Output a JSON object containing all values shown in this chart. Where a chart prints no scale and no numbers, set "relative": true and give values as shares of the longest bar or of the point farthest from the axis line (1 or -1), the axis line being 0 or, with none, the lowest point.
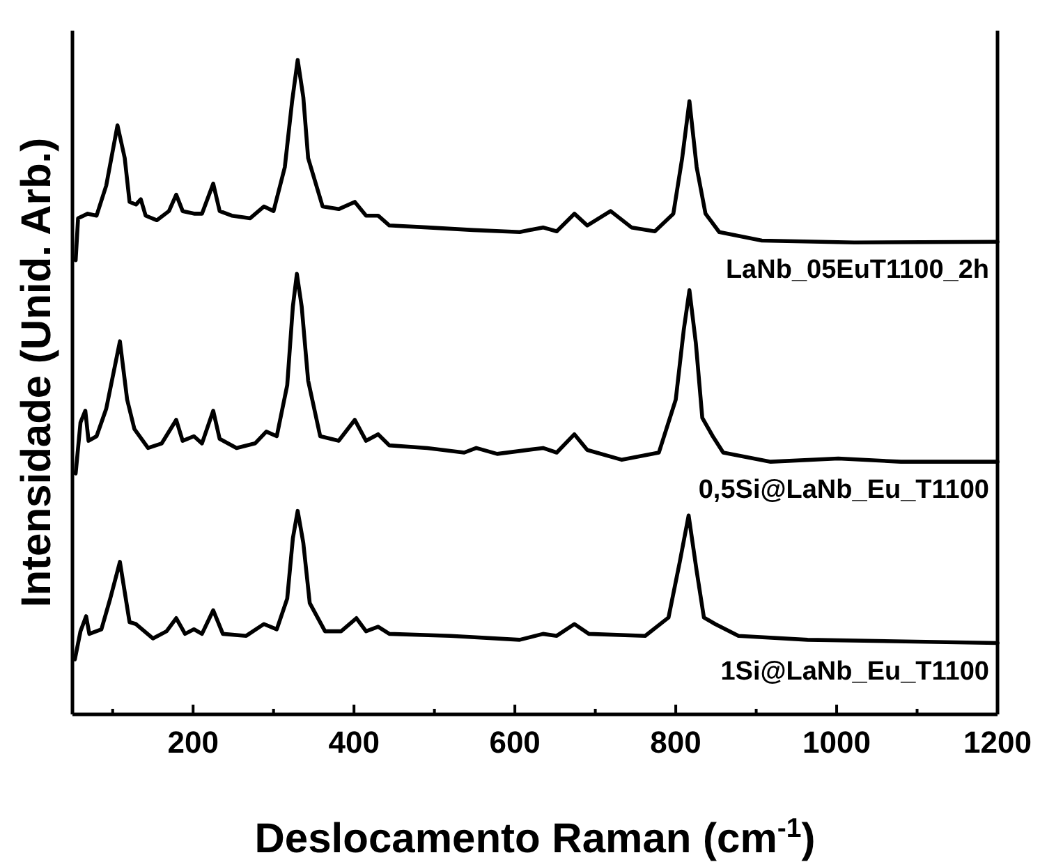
{
  "chart_data": {
    "type": "line",
    "relative": true,
    "xlabel": "Deslocamento Raman (cm$^{-1}$)",
    "ylabel": "Intensidade (Unid. Arb.)",
    "xlim": [
      50,
      1200
    ],
    "xticks": [
      {
        "value": 100,
        "label": null
      },
      200,
      {
        "value": 300,
        "label": null
      },
      400,
      {
        "value": 500,
        "label": null
      },
      600,
      {
        "value": 700,
        "label": null
      },
      800,
      {
        "value": 900,
        "label": null
      },
      1000,
      {
        "value": 1100,
        "label": null
      },
      1200
    ],
    "grid": false,
    "tick_labels": "x",
    "line_style": "solid",
    "series": [
      {
        "name": "LaNb_05EuT1100_2h",
        "color": "#000000",
        "x": [
          54,
          57,
          69,
          80,
          92,
          106,
          115,
          121,
          129,
          135,
          141,
          155,
          170,
          179,
          187,
          202,
          211,
          225,
          233,
          248,
          271,
          288,
          300,
          314,
          323,
          330,
          337,
          343,
          361,
          381,
          401,
          415,
          430,
          444,
          491,
          548,
          606,
          635,
          652,
          674,
          690,
          719,
          745,
          774,
          797,
          808,
          817,
          826,
          837,
          854,
          907,
          1022,
          1200
        ],
        "values": [
          0.694,
          0.758,
          0.765,
          0.762,
          0.808,
          0.9,
          0.85,
          0.783,
          0.779,
          0.787,
          0.762,
          0.755,
          0.769,
          0.794,
          0.769,
          0.765,
          0.765,
          0.811,
          0.769,
          0.762,
          0.758,
          0.776,
          0.769,
          0.836,
          0.936,
          1,
          0.943,
          0.85,
          0.776,
          0.772,
          0.783,
          0.762,
          0.762,
          0.747,
          0.744,
          0.74,
          0.737,
          0.744,
          0.738,
          0.765,
          0.747,
          0.769,
          0.744,
          0.738,
          0.765,
          0.85,
          0.937,
          0.836,
          0.765,
          0.737,
          0.724,
          0.721,
          0.722
        ]
      },
      {
        "name": "0,5Si@LaNb_Eu_T1100",
        "color": "#000000",
        "x": [
          54,
          60,
          66,
          70,
          80,
          92,
          109,
          118,
          127,
          144,
          161,
          179,
          187,
          201,
          211,
          225,
          233,
          254,
          277,
          291,
          304,
          317,
          324,
          329,
          335,
          343,
          358,
          381,
          401,
          415,
          430,
          444,
          491,
          537,
          552,
          578,
          635,
          652,
          674,
          690,
          733,
          779,
          800,
          810,
          817,
          825,
          833,
          846,
          859,
          918,
          1002,
          1080,
          1200
        ],
        "values": [
          0.368,
          0.446,
          0.464,
          0.418,
          0.425,
          0.467,
          0.57,
          0.481,
          0.436,
          0.407,
          0.414,
          0.45,
          0.418,
          0.425,
          0.414,
          0.464,
          0.421,
          0.407,
          0.414,
          0.432,
          0.425,
          0.503,
          0.623,
          0.673,
          0.623,
          0.51,
          0.425,
          0.418,
          0.45,
          0.418,
          0.428,
          0.411,
          0.407,
          0.4,
          0.407,
          0.398,
          0.407,
          0.4,
          0.428,
          0.404,
          0.389,
          0.4,
          0.481,
          0.588,
          0.648,
          0.567,
          0.453,
          0.425,
          0.4,
          0.386,
          0.391,
          0.386,
          0.386
        ]
      },
      {
        "name": "1Si@LaNb_Eu_T1100",
        "color": "#000000",
        "x": [
          53,
          60,
          67,
          71,
          86,
          97,
          109,
          121,
          129,
          150,
          167,
          179,
          190,
          201,
          211,
          225,
          237,
          266,
          288,
          304,
          317,
          324,
          330,
          337,
          345,
          364,
          384,
          403,
          415,
          430,
          444,
          520,
          606,
          635,
          652,
          674,
          692,
          762,
          791,
          805,
          816,
          826,
          835,
          849,
          878,
          964,
          1200
        ],
        "values": [
          0.084,
          0.127,
          0.15,
          0.123,
          0.13,
          0.177,
          0.233,
          0.141,
          0.138,
          0.116,
          0.127,
          0.147,
          0.123,
          0.13,
          0.123,
          0.159,
          0.123,
          0.12,
          0.138,
          0.13,
          0.177,
          0.269,
          0.311,
          0.262,
          0.17,
          0.127,
          0.127,
          0.147,
          0.127,
          0.134,
          0.123,
          0.12,
          0.114,
          0.123,
          0.12,
          0.138,
          0.123,
          0.12,
          0.148,
          0.233,
          0.304,
          0.219,
          0.148,
          0.138,
          0.12,
          0.114,
          0.109
        ]
      }
    ]
  }
}
